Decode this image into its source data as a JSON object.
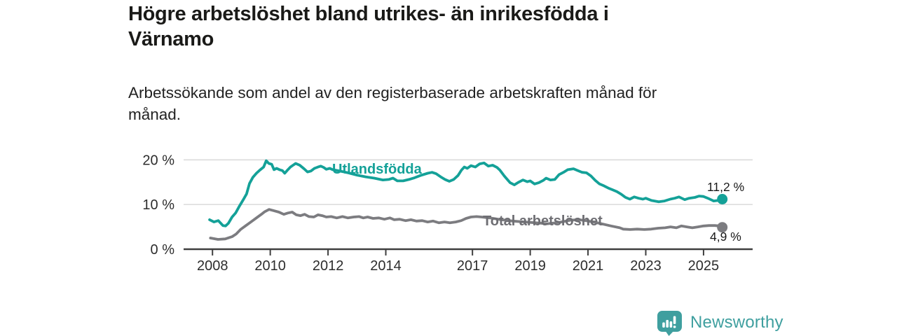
{
  "header": {
    "title": "Högre arbetslöshet bland utrikes- än inrikesfödda i\nVärnamo",
    "subtitle": "Arbetssökande som andel av den registerbaserade arbetskraften månad för\nmånad."
  },
  "footer": {
    "brand": "Newsworthy"
  },
  "colors": {
    "accent_teal": "#14a198",
    "line_gray": "#7c7c80",
    "label_gray": "#6e6e73",
    "brand_teal": "#3f9f9f",
    "grid": "#d9d9d9",
    "axis": "#3f3f3f",
    "tick_text": "#2d2d2d",
    "value_text": "#191919"
  },
  "chart_data": {
    "type": "line",
    "title": "Högre arbetslöshet bland utrikes- än inrikesfödda i Värnamo",
    "subtitle": "Arbetssökande som andel av den registerbaserade arbetskraften månad för månad.",
    "xlabel": "",
    "ylabel": "",
    "xlim": [
      2007.0,
      2026.7
    ],
    "ylim": [
      0,
      21.56
    ],
    "grid": "horizontal",
    "legend_position": "inline",
    "x_ticks": [
      {
        "v": 2008,
        "label": "2008"
      },
      {
        "v": 2010,
        "label": "2010"
      },
      {
        "v": 2012,
        "label": "2012"
      },
      {
        "v": 2014,
        "label": "2014"
      },
      {
        "v": 2017,
        "label": "2017"
      },
      {
        "v": 2019,
        "label": "2019"
      },
      {
        "v": 2021,
        "label": "2021"
      },
      {
        "v": 2023,
        "label": "2023"
      },
      {
        "v": 2025,
        "label": "2025"
      }
    ],
    "y_ticks": [
      {
        "v": 0,
        "label": "0 %"
      },
      {
        "v": 10,
        "label": "10 %"
      },
      {
        "v": 20,
        "label": "20 %"
      }
    ],
    "series": [
      {
        "name": "Utlandsfödda",
        "color": "#14a198",
        "end_label": "11,2 %",
        "end_value": 11.2,
        "points": [
          [
            2007.9,
            6.6
          ],
          [
            2008.05,
            6.1
          ],
          [
            2008.2,
            6.4
          ],
          [
            2008.36,
            5.3
          ],
          [
            2008.45,
            5.2
          ],
          [
            2008.55,
            5.8
          ],
          [
            2008.68,
            7.2
          ],
          [
            2008.8,
            8.1
          ],
          [
            2008.92,
            9.5
          ],
          [
            2009.05,
            10.9
          ],
          [
            2009.18,
            12.4
          ],
          [
            2009.28,
            14.7
          ],
          [
            2009.4,
            16.1
          ],
          [
            2009.52,
            17.0
          ],
          [
            2009.64,
            17.7
          ],
          [
            2009.77,
            18.4
          ],
          [
            2009.86,
            19.8
          ],
          [
            2009.95,
            19.2
          ],
          [
            2010.05,
            19.0
          ],
          [
            2010.13,
            17.8
          ],
          [
            2010.22,
            18.1
          ],
          [
            2010.32,
            17.8
          ],
          [
            2010.42,
            17.6
          ],
          [
            2010.5,
            17.0
          ],
          [
            2010.61,
            17.8
          ],
          [
            2010.7,
            18.4
          ],
          [
            2010.79,
            18.8
          ],
          [
            2010.88,
            19.2
          ],
          [
            2011.02,
            18.8
          ],
          [
            2011.17,
            18.0
          ],
          [
            2011.29,
            17.3
          ],
          [
            2011.41,
            17.5
          ],
          [
            2011.53,
            18.1
          ],
          [
            2011.65,
            18.4
          ],
          [
            2011.75,
            18.6
          ],
          [
            2011.85,
            18.3
          ],
          [
            2011.94,
            17.9
          ],
          [
            2012.06,
            18.1
          ],
          [
            2012.16,
            17.8
          ],
          [
            2012.4,
            17.5
          ],
          [
            2012.7,
            17.1
          ],
          [
            2013.0,
            16.6
          ],
          [
            2013.3,
            16.2
          ],
          [
            2013.6,
            15.9
          ],
          [
            2013.9,
            15.5
          ],
          [
            2014.1,
            15.6
          ],
          [
            2014.25,
            15.9
          ],
          [
            2014.4,
            15.3
          ],
          [
            2014.6,
            15.3
          ],
          [
            2014.8,
            15.6
          ],
          [
            2015.0,
            16.0
          ],
          [
            2015.2,
            16.5
          ],
          [
            2015.45,
            17.0
          ],
          [
            2015.6,
            17.2
          ],
          [
            2015.74,
            16.9
          ],
          [
            2015.9,
            16.2
          ],
          [
            2016.05,
            15.6
          ],
          [
            2016.2,
            15.2
          ],
          [
            2016.35,
            15.6
          ],
          [
            2016.5,
            16.5
          ],
          [
            2016.62,
            17.7
          ],
          [
            2016.72,
            18.4
          ],
          [
            2016.82,
            18.1
          ],
          [
            2016.95,
            18.7
          ],
          [
            2017.1,
            18.4
          ],
          [
            2017.25,
            19.1
          ],
          [
            2017.4,
            19.3
          ],
          [
            2017.55,
            18.6
          ],
          [
            2017.7,
            18.8
          ],
          [
            2017.85,
            18.3
          ],
          [
            2017.95,
            17.7
          ],
          [
            2018.1,
            16.4
          ],
          [
            2018.3,
            14.9
          ],
          [
            2018.45,
            14.4
          ],
          [
            2018.6,
            15.0
          ],
          [
            2018.75,
            15.5
          ],
          [
            2018.9,
            15.1
          ],
          [
            2019.0,
            15.3
          ],
          [
            2019.15,
            14.6
          ],
          [
            2019.3,
            14.9
          ],
          [
            2019.45,
            15.4
          ],
          [
            2019.55,
            15.9
          ],
          [
            2019.7,
            15.5
          ],
          [
            2019.85,
            15.6
          ],
          [
            2020.0,
            16.7
          ],
          [
            2020.15,
            17.2
          ],
          [
            2020.3,
            17.8
          ],
          [
            2020.5,
            18.0
          ],
          [
            2020.65,
            17.6
          ],
          [
            2020.8,
            17.2
          ],
          [
            2020.95,
            17.1
          ],
          [
            2021.1,
            16.4
          ],
          [
            2021.25,
            15.4
          ],
          [
            2021.4,
            14.6
          ],
          [
            2021.55,
            14.2
          ],
          [
            2021.7,
            13.7
          ],
          [
            2021.85,
            13.3
          ],
          [
            2022.0,
            12.9
          ],
          [
            2022.15,
            12.3
          ],
          [
            2022.3,
            11.6
          ],
          [
            2022.45,
            11.2
          ],
          [
            2022.6,
            11.7
          ],
          [
            2022.75,
            11.4
          ],
          [
            2022.9,
            11.2
          ],
          [
            2023.0,
            11.4
          ],
          [
            2023.2,
            10.9
          ],
          [
            2023.45,
            10.6
          ],
          [
            2023.65,
            10.8
          ],
          [
            2023.85,
            11.2
          ],
          [
            2024.0,
            11.4
          ],
          [
            2024.15,
            11.7
          ],
          [
            2024.35,
            11.1
          ],
          [
            2024.5,
            11.4
          ],
          [
            2024.7,
            11.6
          ],
          [
            2024.85,
            11.9
          ],
          [
            2025.0,
            11.8
          ],
          [
            2025.15,
            11.4
          ],
          [
            2025.35,
            10.8
          ],
          [
            2025.5,
            10.9
          ],
          [
            2025.65,
            11.2
          ]
        ]
      },
      {
        "name": "Total arbetslöshet",
        "color": "#7c7c80",
        "end_label": "4,9 %",
        "end_value": 4.9,
        "points": [
          [
            2007.93,
            2.5
          ],
          [
            2008.19,
            2.2
          ],
          [
            2008.44,
            2.3
          ],
          [
            2008.68,
            2.8
          ],
          [
            2008.82,
            3.4
          ],
          [
            2008.97,
            4.4
          ],
          [
            2009.16,
            5.3
          ],
          [
            2009.33,
            6.1
          ],
          [
            2009.52,
            7.0
          ],
          [
            2009.69,
            7.8
          ],
          [
            2009.81,
            8.4
          ],
          [
            2009.96,
            8.9
          ],
          [
            2010.13,
            8.6
          ],
          [
            2010.3,
            8.3
          ],
          [
            2010.47,
            7.8
          ],
          [
            2010.61,
            8.1
          ],
          [
            2010.76,
            8.3
          ],
          [
            2010.9,
            7.7
          ],
          [
            2011.05,
            7.5
          ],
          [
            2011.19,
            7.8
          ],
          [
            2011.34,
            7.3
          ],
          [
            2011.51,
            7.2
          ],
          [
            2011.65,
            7.7
          ],
          [
            2011.8,
            7.5
          ],
          [
            2011.94,
            7.2
          ],
          [
            2012.11,
            7.3
          ],
          [
            2012.3,
            7.0
          ],
          [
            2012.5,
            7.3
          ],
          [
            2012.69,
            7.0
          ],
          [
            2012.89,
            7.2
          ],
          [
            2013.08,
            7.3
          ],
          [
            2013.22,
            7.0
          ],
          [
            2013.37,
            7.2
          ],
          [
            2013.56,
            6.9
          ],
          [
            2013.76,
            7.0
          ],
          [
            2013.95,
            6.7
          ],
          [
            2014.14,
            7.0
          ],
          [
            2014.29,
            6.6
          ],
          [
            2014.48,
            6.7
          ],
          [
            2014.68,
            6.4
          ],
          [
            2014.87,
            6.6
          ],
          [
            2015.06,
            6.3
          ],
          [
            2015.26,
            6.4
          ],
          [
            2015.45,
            6.1
          ],
          [
            2015.64,
            6.3
          ],
          [
            2015.84,
            5.9
          ],
          [
            2016.03,
            6.1
          ],
          [
            2016.22,
            5.9
          ],
          [
            2016.42,
            6.1
          ],
          [
            2016.61,
            6.4
          ],
          [
            2016.78,
            6.9
          ],
          [
            2016.95,
            7.2
          ],
          [
            2017.14,
            7.3
          ],
          [
            2017.31,
            7.2
          ],
          [
            2017.6,
            7.0
          ],
          [
            2018.0,
            6.6
          ],
          [
            2018.4,
            6.3
          ],
          [
            2018.8,
            6.1
          ],
          [
            2019.2,
            5.9
          ],
          [
            2019.6,
            5.7
          ],
          [
            2020.0,
            6.0
          ],
          [
            2020.4,
            6.5
          ],
          [
            2020.7,
            6.6
          ],
          [
            2021.0,
            6.3
          ],
          [
            2021.4,
            5.8
          ],
          [
            2021.8,
            5.2
          ],
          [
            2022.1,
            4.8
          ],
          [
            2022.22,
            4.5
          ],
          [
            2022.46,
            4.4
          ],
          [
            2022.7,
            4.5
          ],
          [
            2022.95,
            4.4
          ],
          [
            2023.19,
            4.5
          ],
          [
            2023.43,
            4.7
          ],
          [
            2023.67,
            4.8
          ],
          [
            2023.86,
            5.0
          ],
          [
            2024.06,
            4.8
          ],
          [
            2024.23,
            5.2
          ],
          [
            2024.42,
            5.0
          ],
          [
            2024.61,
            4.8
          ],
          [
            2024.81,
            5.0
          ],
          [
            2025.0,
            5.2
          ],
          [
            2025.19,
            5.3
          ],
          [
            2025.39,
            5.3
          ],
          [
            2025.56,
            5.2
          ],
          [
            2025.65,
            4.9
          ]
        ]
      }
    ]
  }
}
